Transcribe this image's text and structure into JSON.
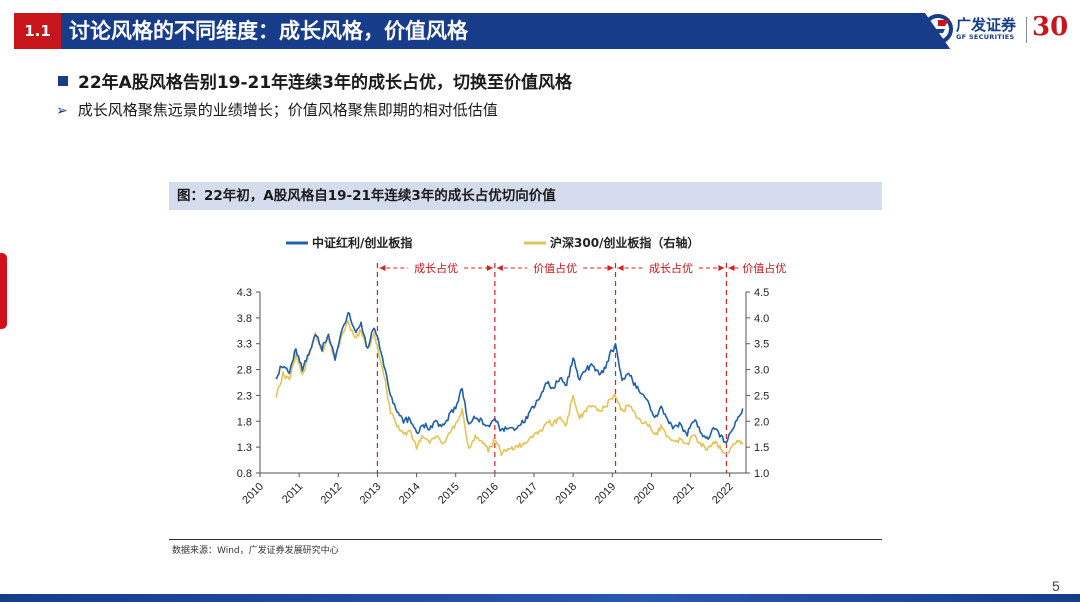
{
  "header": {
    "section_number": "1.1",
    "title": "讨论风格的不同维度：成长风格，价值风格",
    "logo_cn": "广发证券",
    "logo_en": "GF SECURITIES",
    "logo_anniversary": "30"
  },
  "bullets": {
    "main": "22年A股风格告别19-21年连续3年的成长占优，切换至价值风格",
    "sub": "成长风格聚焦远景的业绩增长；价值风格聚焦即期的相对低估值"
  },
  "chart": {
    "caption": "图：22年初，A股风格自19-21年连续3年的成长占优切向价值",
    "source": "数据来源：Wind，广发证券发展研究中心"
  },
  "colors": {
    "brand_blue": "#173c8a",
    "accent_red": "#c8151b",
    "series_blue": "#1f5fa8",
    "series_yellow": "#e3c35a"
  },
  "page_number": "5",
  "chart_data": {
    "type": "line",
    "title": "",
    "x_ticks": [
      "2010",
      "2011",
      "2012",
      "2013",
      "2014",
      "2015",
      "2016",
      "2017",
      "2018",
      "2019",
      "2020",
      "2021",
      "2022"
    ],
    "xlim": [
      "2010-01",
      "2022-06"
    ],
    "y_left": {
      "ylim": [
        0.8,
        4.3
      ],
      "ticks": [
        "0.8",
        "1.3",
        "1.8",
        "2.3",
        "2.8",
        "3.3",
        "3.8",
        "4.3"
      ]
    },
    "y_right": {
      "ylim": [
        1.0,
        4.5
      ],
      "ticks": [
        "1.0",
        "1.5",
        "2.0",
        "2.5",
        "3.0",
        "3.5",
        "4.0",
        "4.5"
      ]
    },
    "legend_position": "top",
    "periods": [
      {
        "label": "成长占优",
        "start": "2013-01",
        "end": "2016-01"
      },
      {
        "label": "价值占优",
        "start": "2016-01",
        "end": "2019-02"
      },
      {
        "label": "成长占优",
        "start": "2019-02",
        "end": "2021-12"
      },
      {
        "label": "价值占优",
        "start": "2021-12",
        "end": ""
      }
    ],
    "dividers": [
      "2013-01",
      "2016-01",
      "2019-02",
      "2021-12"
    ],
    "series": [
      {
        "name": "中证红利/创业板指",
        "axis": "left",
        "color": "#1f5fa8",
        "points": [
          [
            "2010-06",
            2.65
          ],
          [
            "2010-08",
            2.9
          ],
          [
            "2010-10",
            2.75
          ],
          [
            "2010-12",
            3.2
          ],
          [
            "2011-02",
            2.8
          ],
          [
            "2011-04",
            3.1
          ],
          [
            "2011-06",
            3.5
          ],
          [
            "2011-08",
            3.2
          ],
          [
            "2011-10",
            3.45
          ],
          [
            "2011-12",
            3.0
          ],
          [
            "2012-02",
            3.5
          ],
          [
            "2012-04",
            3.9
          ],
          [
            "2012-06",
            3.55
          ],
          [
            "2012-08",
            3.7
          ],
          [
            "2012-10",
            3.2
          ],
          [
            "2012-12",
            3.65
          ],
          [
            "2013-01",
            3.4
          ],
          [
            "2013-03",
            2.9
          ],
          [
            "2013-05",
            2.3
          ],
          [
            "2013-07",
            2.0
          ],
          [
            "2013-09",
            1.8
          ],
          [
            "2013-11",
            1.85
          ],
          [
            "2014-01",
            1.55
          ],
          [
            "2014-03",
            1.75
          ],
          [
            "2014-05",
            1.65
          ],
          [
            "2014-07",
            1.8
          ],
          [
            "2014-09",
            1.7
          ],
          [
            "2014-11",
            1.9
          ],
          [
            "2015-01",
            2.1
          ],
          [
            "2015-03",
            2.45
          ],
          [
            "2015-05",
            1.7
          ],
          [
            "2015-07",
            1.9
          ],
          [
            "2015-09",
            1.8
          ],
          [
            "2015-11",
            1.65
          ],
          [
            "2016-01",
            1.85
          ],
          [
            "2016-03",
            1.6
          ],
          [
            "2016-05",
            1.7
          ],
          [
            "2016-07",
            1.65
          ],
          [
            "2016-09",
            1.75
          ],
          [
            "2016-11",
            1.9
          ],
          [
            "2017-01",
            2.1
          ],
          [
            "2017-03",
            2.3
          ],
          [
            "2017-05",
            2.55
          ],
          [
            "2017-07",
            2.45
          ],
          [
            "2017-09",
            2.65
          ],
          [
            "2017-11",
            2.5
          ],
          [
            "2018-01",
            3.0
          ],
          [
            "2018-03",
            2.6
          ],
          [
            "2018-05",
            2.8
          ],
          [
            "2018-07",
            2.9
          ],
          [
            "2018-09",
            2.7
          ],
          [
            "2018-11",
            2.85
          ],
          [
            "2019-01",
            3.2
          ],
          [
            "2019-02",
            3.25
          ],
          [
            "2019-04",
            2.6
          ],
          [
            "2019-06",
            2.75
          ],
          [
            "2019-08",
            2.5
          ],
          [
            "2019-10",
            2.35
          ],
          [
            "2019-12",
            2.2
          ],
          [
            "2020-02",
            1.85
          ],
          [
            "2020-04",
            2.1
          ],
          [
            "2020-06",
            1.8
          ],
          [
            "2020-08",
            1.65
          ],
          [
            "2020-10",
            1.75
          ],
          [
            "2020-12",
            1.55
          ],
          [
            "2021-02",
            1.85
          ],
          [
            "2021-04",
            1.6
          ],
          [
            "2021-06",
            1.45
          ],
          [
            "2021-08",
            1.7
          ],
          [
            "2021-10",
            1.55
          ],
          [
            "2021-12",
            1.4
          ],
          [
            "2022-02",
            1.7
          ],
          [
            "2022-04",
            1.9
          ],
          [
            "2022-05",
            2.05
          ]
        ]
      },
      {
        "name": "沪深300/创业板指（右轴）",
        "axis": "right",
        "color": "#e3c35a",
        "points": [
          [
            "2010-06",
            2.5
          ],
          [
            "2010-08",
            2.9
          ],
          [
            "2010-10",
            2.8
          ],
          [
            "2010-12",
            3.3
          ],
          [
            "2011-02",
            2.9
          ],
          [
            "2011-04",
            3.3
          ],
          [
            "2011-06",
            3.7
          ],
          [
            "2011-08",
            3.35
          ],
          [
            "2011-10",
            3.6
          ],
          [
            "2011-12",
            3.2
          ],
          [
            "2012-02",
            3.6
          ],
          [
            "2012-04",
            3.95
          ],
          [
            "2012-06",
            3.6
          ],
          [
            "2012-08",
            3.75
          ],
          [
            "2012-10",
            3.35
          ],
          [
            "2012-12",
            3.7
          ],
          [
            "2013-01",
            3.45
          ],
          [
            "2013-03",
            2.9
          ],
          [
            "2013-05",
            2.2
          ],
          [
            "2013-07",
            1.9
          ],
          [
            "2013-09",
            1.75
          ],
          [
            "2013-11",
            1.8
          ],
          [
            "2014-01",
            1.5
          ],
          [
            "2014-03",
            1.7
          ],
          [
            "2014-05",
            1.6
          ],
          [
            "2014-07",
            1.7
          ],
          [
            "2014-09",
            1.55
          ],
          [
            "2014-11",
            1.75
          ],
          [
            "2015-01",
            1.95
          ],
          [
            "2015-03",
            2.2
          ],
          [
            "2015-05",
            1.45
          ],
          [
            "2015-07",
            1.7
          ],
          [
            "2015-09",
            1.6
          ],
          [
            "2015-11",
            1.45
          ],
          [
            "2016-01",
            1.65
          ],
          [
            "2016-03",
            1.4
          ],
          [
            "2016-05",
            1.45
          ],
          [
            "2016-07",
            1.5
          ],
          [
            "2016-09",
            1.55
          ],
          [
            "2016-11",
            1.6
          ],
          [
            "2017-01",
            1.75
          ],
          [
            "2017-03",
            1.8
          ],
          [
            "2017-05",
            2.0
          ],
          [
            "2017-07",
            1.95
          ],
          [
            "2017-09",
            2.05
          ],
          [
            "2017-11",
            1.95
          ],
          [
            "2018-01",
            2.5
          ],
          [
            "2018-03",
            2.05
          ],
          [
            "2018-05",
            2.2
          ],
          [
            "2018-07",
            2.3
          ],
          [
            "2018-09",
            2.2
          ],
          [
            "2018-11",
            2.3
          ],
          [
            "2019-01",
            2.45
          ],
          [
            "2019-02",
            2.5
          ],
          [
            "2019-04",
            2.2
          ],
          [
            "2019-06",
            2.3
          ],
          [
            "2019-08",
            2.15
          ],
          [
            "2019-10",
            2.0
          ],
          [
            "2019-12",
            1.95
          ],
          [
            "2020-02",
            1.7
          ],
          [
            "2020-04",
            1.9
          ],
          [
            "2020-06",
            1.7
          ],
          [
            "2020-08",
            1.6
          ],
          [
            "2020-10",
            1.65
          ],
          [
            "2020-12",
            1.55
          ],
          [
            "2021-02",
            1.75
          ],
          [
            "2021-04",
            1.55
          ],
          [
            "2021-06",
            1.45
          ],
          [
            "2021-08",
            1.6
          ],
          [
            "2021-10",
            1.5
          ],
          [
            "2021-12",
            1.35
          ],
          [
            "2022-02",
            1.55
          ],
          [
            "2022-04",
            1.6
          ],
          [
            "2022-05",
            1.55
          ]
        ]
      }
    ]
  }
}
